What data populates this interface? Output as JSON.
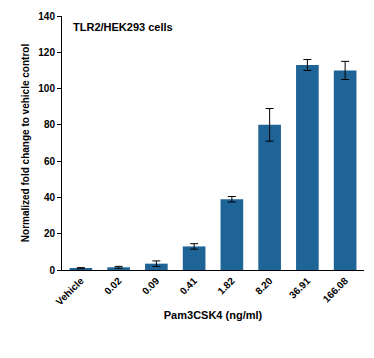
{
  "chart_data": {
    "type": "bar",
    "title": "TLR2/HEK293 cells",
    "x_label": "Pam3CSK4 (ng/ml)",
    "y_label": "Normalized fold change to vehicle control",
    "categories": [
      "Vehicle",
      "0.02",
      "0.09",
      "0.41",
      "1.82",
      "8.20",
      "36.91",
      "166.08"
    ],
    "values": [
      1,
      1.5,
      3.5,
      13,
      39,
      80,
      113,
      110
    ],
    "errors": [
      0.3,
      0.5,
      1.5,
      1.5,
      1.5,
      9,
      3,
      5
    ],
    "color": "#1f6497",
    "ylim": [
      0,
      140
    ],
    "yticks": [
      0,
      20,
      40,
      60,
      80,
      100,
      120,
      140
    ],
    "grid": false
  }
}
